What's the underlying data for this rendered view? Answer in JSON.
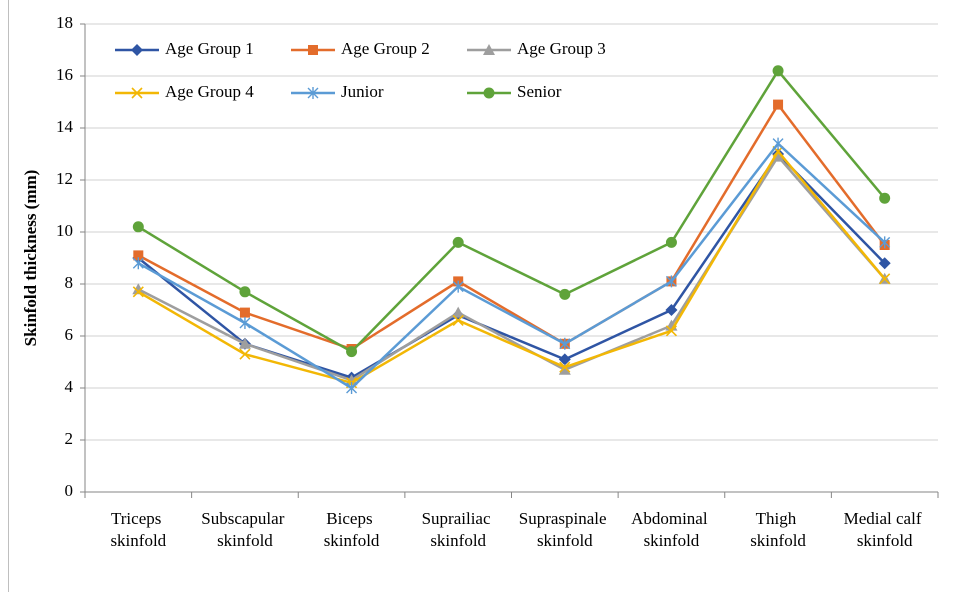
{
  "chart_data": {
    "type": "line",
    "y_label": "Skinfold thickness (mm)",
    "categories": [
      "Triceps skinfold",
      "Subscapular skinfold",
      "Biceps skinfold",
      "Suprailiac skinfold",
      "Supraspinale skinfold",
      "Abdominal skinfold",
      "Thigh skinfold",
      "Medial calf skinfold"
    ],
    "series": [
      {
        "name": "Age Group 1",
        "color": "#2F55A4",
        "marker": "diamond",
        "values": [
          9.0,
          5.7,
          4.4,
          6.8,
          5.1,
          7.0,
          13.0,
          8.8
        ]
      },
      {
        "name": "Age Group 2",
        "color": "#E36C2B",
        "marker": "square",
        "values": [
          9.1,
          6.9,
          5.5,
          8.1,
          5.7,
          8.1,
          14.9,
          9.5
        ]
      },
      {
        "name": "Age Group 3",
        "color": "#9E9E9E",
        "marker": "triangle",
        "values": [
          7.8,
          5.7,
          4.3,
          6.9,
          4.7,
          6.4,
          12.9,
          8.2
        ]
      },
      {
        "name": "Age Group 4",
        "color": "#F2B705",
        "marker": "x",
        "values": [
          7.7,
          5.3,
          4.2,
          6.6,
          4.8,
          6.2,
          13.1,
          8.2
        ]
      },
      {
        "name": "Junior",
        "color": "#5B9BD5",
        "marker": "star",
        "values": [
          8.8,
          6.5,
          4.0,
          7.9,
          5.7,
          8.1,
          13.4,
          9.6
        ]
      },
      {
        "name": "Senior",
        "color": "#5FA33A",
        "marker": "circle",
        "values": [
          10.2,
          7.7,
          5.4,
          9.6,
          7.6,
          9.6,
          16.2,
          11.3
        ]
      }
    ],
    "ylim": [
      0,
      18
    ],
    "yticks": [
      0,
      2,
      4,
      6,
      8,
      10,
      12,
      14,
      16,
      18
    ],
    "grid": true,
    "legend": "top-left"
  }
}
